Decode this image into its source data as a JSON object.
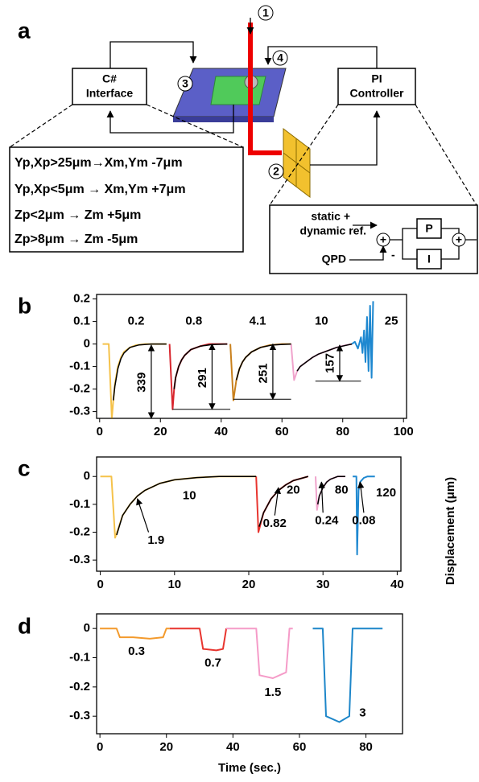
{
  "diagram": {
    "panel_label": "a",
    "markers": [
      "1",
      "2",
      "3",
      "4"
    ],
    "c_sharp_box": [
      "C#",
      "Interface"
    ],
    "pi_box": [
      "PI",
      "Controller"
    ],
    "rules": [
      "Yp,Xp>25μm→Xm,Ym -7μm",
      "Yp,Xp<5μm → Xm,Ym +7μm",
      "Zp<2μm → Zm +5μm",
      "Zp>8μm → Zm -5μm"
    ],
    "controller_inputs": [
      "static +",
      "dynamic ref.",
      "QPD"
    ],
    "blocks": [
      "P",
      "I"
    ],
    "summers": [
      "+",
      "+"
    ],
    "minus": "-"
  },
  "chart_data": [
    {
      "type": "line",
      "panel_label": "b",
      "xlim": [
        -1,
        101
      ],
      "xticks": [
        0,
        20,
        40,
        60,
        80,
        100
      ],
      "ylim": [
        -0.33,
        0.22
      ],
      "yticks": [
        0.2,
        0.1,
        0,
        -0.1,
        -0.2,
        -0.3
      ],
      "annotations": [
        "0.2",
        "0.8",
        "4.1",
        "10",
        "25",
        "339",
        "291",
        "251",
        "157"
      ],
      "series": [
        {
          "color": "#f5c24a",
          "x": [
            1,
            3,
            4,
            4.5,
            5,
            6,
            7,
            8,
            10,
            12,
            15,
            18,
            22
          ],
          "values": [
            0,
            0,
            -0.33,
            -0.25,
            -0.18,
            -0.1,
            -0.06,
            -0.035,
            -0.015,
            -0.005,
            0,
            0,
            0
          ]
        },
        {
          "color": "#d8262e",
          "x": [
            23,
            24,
            24.5,
            25,
            26,
            27,
            28,
            30,
            33,
            36,
            42
          ],
          "values": [
            0,
            -0.29,
            -0.2,
            -0.15,
            -0.1,
            -0.07,
            -0.05,
            -0.025,
            -0.01,
            0,
            0
          ]
        },
        {
          "color": "#c9801c",
          "x": [
            43,
            44,
            45,
            46,
            47,
            48,
            50,
            53,
            56,
            60,
            63
          ],
          "values": [
            0,
            -0.25,
            -0.16,
            -0.11,
            -0.08,
            -0.06,
            -0.035,
            -0.015,
            -0.005,
            0,
            0
          ]
        },
        {
          "color": "#f0a3cc",
          "x": [
            63,
            64,
            65,
            66,
            68,
            70,
            72,
            75,
            78,
            81,
            83
          ],
          "values": [
            0,
            -0.16,
            -0.12,
            -0.1,
            -0.08,
            -0.06,
            -0.045,
            -0.03,
            -0.015,
            -0.005,
            0
          ]
        },
        {
          "color": "#1e88d0",
          "x": [
            83,
            84,
            85,
            86,
            86.5,
            87,
            87.5,
            88,
            88.5,
            89,
            89.5,
            90
          ],
          "values": [
            0,
            0.01,
            -0.02,
            0.03,
            -0.04,
            0.06,
            -0.08,
            0.12,
            -0.12,
            0.17,
            -0.15,
            0.19
          ]
        },
        {
          "color": "#000000",
          "x": [
            4.5,
            5,
            6,
            7,
            8,
            10,
            13,
            17,
            22
          ],
          "values": [
            -0.25,
            -0.19,
            -0.11,
            -0.065,
            -0.04,
            -0.015,
            -0.004,
            0,
            0
          ]
        },
        {
          "color": "#000000",
          "x": [
            24.5,
            25,
            26,
            27,
            28,
            30,
            33,
            37,
            42
          ],
          "values": [
            -0.2,
            -0.15,
            -0.1,
            -0.07,
            -0.05,
            -0.025,
            -0.01,
            -0.002,
            0
          ]
        },
        {
          "color": "#000000",
          "x": [
            45,
            46,
            47,
            48,
            50,
            53,
            57,
            63
          ],
          "values": [
            -0.16,
            -0.11,
            -0.08,
            -0.06,
            -0.035,
            -0.015,
            -0.004,
            0
          ]
        },
        {
          "color": "#000000",
          "x": [
            65,
            66,
            68,
            70,
            72,
            75,
            78,
            83
          ],
          "values": [
            -0.12,
            -0.1,
            -0.08,
            -0.06,
            -0.045,
            -0.03,
            -0.015,
            0
          ]
        }
      ]
    },
    {
      "type": "line",
      "panel_label": "c",
      "ylabel": "Displacement (μm)",
      "xlim": [
        -0.5,
        40.5
      ],
      "xticks": [
        0,
        10,
        20,
        30,
        40
      ],
      "ylim": [
        -0.34,
        0.07
      ],
      "yticks": [
        0,
        -0.1,
        -0.2,
        -0.3
      ],
      "annotations": [
        "10",
        "20",
        "80",
        "120",
        "1.9",
        "0.82",
        "0.24",
        "0.08"
      ],
      "series": [
        {
          "color": "#f5c24a",
          "x": [
            0,
            1.5,
            2,
            2.5,
            3,
            4,
            5,
            6,
            8,
            10,
            13,
            16,
            21
          ],
          "values": [
            0,
            0,
            -0.22,
            -0.18,
            -0.14,
            -0.1,
            -0.07,
            -0.05,
            -0.025,
            -0.012,
            -0.004,
            0,
            0
          ]
        },
        {
          "color": "#e8352f",
          "x": [
            21,
            21.3,
            22,
            23,
            24,
            25,
            26,
            28
          ],
          "values": [
            0,
            -0.2,
            -0.13,
            -0.08,
            -0.05,
            -0.03,
            -0.015,
            0
          ]
        },
        {
          "color": "#f0a3cc",
          "x": [
            29,
            29.2,
            29.5,
            30,
            30.5,
            31,
            32,
            33
          ],
          "values": [
            0,
            -0.12,
            -0.07,
            -0.04,
            -0.02,
            -0.01,
            0,
            0
          ]
        },
        {
          "color": "#1e88d0",
          "x": [
            34,
            34.5,
            34.6,
            34.8,
            35,
            35.5,
            36,
            37
          ],
          "values": [
            0,
            0,
            -0.28,
            -0.05,
            -0.02,
            -0.005,
            0,
            0
          ]
        },
        {
          "color": "#000000",
          "x": [
            2.2,
            3,
            4,
            5,
            6,
            8,
            10,
            13,
            16,
            21
          ],
          "values": [
            -0.21,
            -0.14,
            -0.1,
            -0.07,
            -0.05,
            -0.025,
            -0.012,
            -0.004,
            0,
            0
          ]
        },
        {
          "color": "#000000",
          "x": [
            21.4,
            22,
            23,
            24,
            25,
            26,
            28
          ],
          "values": [
            -0.18,
            -0.13,
            -0.08,
            -0.05,
            -0.03,
            -0.015,
            0
          ]
        },
        {
          "color": "#000000",
          "x": [
            29.3,
            29.5,
            30,
            30.5,
            31,
            32,
            33
          ],
          "values": [
            -0.1,
            -0.07,
            -0.04,
            -0.02,
            -0.01,
            0,
            0
          ]
        }
      ]
    },
    {
      "type": "line",
      "panel_label": "d",
      "xlabel": "Time (sec.)",
      "xlim": [
        -1,
        91
      ],
      "xticks": [
        0,
        20,
        40,
        60,
        80
      ],
      "ylim": [
        -0.36,
        0.05
      ],
      "yticks": [
        0,
        -0.1,
        -0.2,
        -0.3
      ],
      "annotations": [
        "0.3",
        "0.7",
        "1.5",
        "3"
      ],
      "series": [
        {
          "color": "#f39a2c",
          "x": [
            0,
            5,
            6,
            10,
            15,
            19,
            20,
            21
          ],
          "values": [
            0,
            0,
            -0.03,
            -0.03,
            -0.035,
            -0.03,
            0,
            0
          ]
        },
        {
          "color": "#e8352f",
          "x": [
            21,
            25,
            30,
            31,
            35,
            37,
            38
          ],
          "values": [
            0,
            0,
            0,
            -0.07,
            -0.075,
            -0.07,
            0
          ]
        },
        {
          "color": "#f59bc8",
          "x": [
            38,
            47,
            48,
            52,
            56,
            57,
            58
          ],
          "values": [
            0,
            0,
            -0.16,
            -0.17,
            -0.15,
            0,
            0
          ]
        },
        {
          "color": "#1d86c9",
          "x": [
            64,
            67,
            68,
            72,
            75,
            76,
            78,
            85
          ],
          "values": [
            0,
            0,
            -0.3,
            -0.32,
            -0.3,
            0,
            0,
            0
          ]
        }
      ]
    }
  ]
}
